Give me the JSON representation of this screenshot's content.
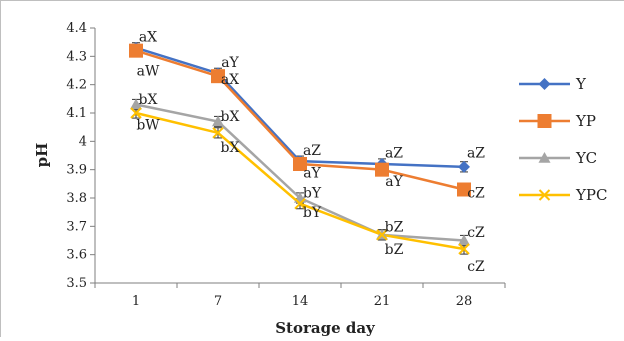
{
  "chart_data": {
    "type": "line",
    "xlabel": "Storage day",
    "ylabel": "pH",
    "categories": [
      "1",
      "7",
      "14",
      "21",
      "28"
    ],
    "ylim": [
      3.5,
      4.4
    ],
    "yticks": [
      "3.5",
      "3.6",
      "3.7",
      "3.8",
      "3.9",
      "4",
      "4.1",
      "4.2",
      "4.3",
      "4.4"
    ],
    "grid": false,
    "legend_position": "right",
    "series": [
      {
        "name": "Y",
        "color": "#4472C4",
        "marker": "diamond",
        "values": [
          4.33,
          4.24,
          3.93,
          3.92,
          3.91
        ]
      },
      {
        "name": "YP",
        "color": "#ED7D31",
        "marker": "square",
        "values": [
          4.32,
          4.23,
          3.92,
          3.9,
          3.83
        ]
      },
      {
        "name": "YC",
        "color": "#A5A5A5",
        "marker": "triangle",
        "values": [
          4.13,
          4.07,
          3.8,
          3.67,
          3.65
        ]
      },
      {
        "name": "YPC",
        "color": "#FFC000",
        "marker": "x",
        "values": [
          4.1,
          4.03,
          3.78,
          3.67,
          3.62
        ]
      }
    ],
    "annotations": [
      {
        "text": "aX",
        "x": "1",
        "y": 4.37
      },
      {
        "text": "aW",
        "x": "1",
        "y": 4.25
      },
      {
        "text": "bX",
        "x": "1",
        "y": 4.15
      },
      {
        "text": "bW",
        "x": "1",
        "y": 4.06
      },
      {
        "text": "aY",
        "x": "7",
        "y": 4.28
      },
      {
        "text": "aX",
        "x": "7",
        "y": 4.22
      },
      {
        "text": "bX",
        "x": "7",
        "y": 4.09
      },
      {
        "text": "bX",
        "x": "7",
        "y": 3.98
      },
      {
        "text": "aZ",
        "x": "14",
        "y": 3.97
      },
      {
        "text": "aY",
        "x": "14",
        "y": 3.89
      },
      {
        "text": "bY",
        "x": "14",
        "y": 3.82
      },
      {
        "text": "bY",
        "x": "14",
        "y": 3.75
      },
      {
        "text": "aZ",
        "x": "21",
        "y": 3.96
      },
      {
        "text": "aY",
        "x": "21",
        "y": 3.86
      },
      {
        "text": "bZ",
        "x": "21",
        "y": 3.7
      },
      {
        "text": "bZ",
        "x": "21",
        "y": 3.62
      },
      {
        "text": "aZ",
        "x": "28",
        "y": 3.96
      },
      {
        "text": "cZ",
        "x": "28",
        "y": 3.82
      },
      {
        "text": "cZ",
        "x": "28",
        "y": 3.68
      },
      {
        "text": "cZ",
        "x": "28",
        "y": 3.56
      }
    ]
  }
}
